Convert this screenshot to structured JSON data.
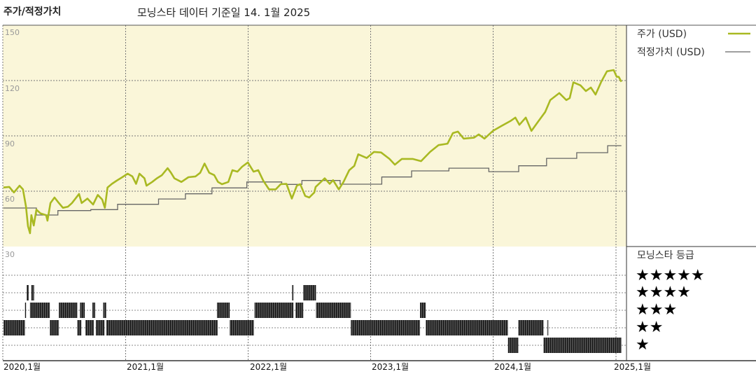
{
  "header": {
    "title": "주가/적정가치",
    "subtitle": "모닝스타 데이터 기준일 14. 1월 2025"
  },
  "colors": {
    "price_line": "#a9b922",
    "fair_value_line": "#666666",
    "plot_background": "#faf6d9",
    "rating_bar": "#333333"
  },
  "chart_data": {
    "type": "line",
    "title": "주가/적정가치",
    "subtitle": "모닝스타 데이터 기준일 14. 1월 2025",
    "xlim": [
      "2020-01-01",
      "2025-01-15"
    ],
    "ylim": [
      30,
      150
    ],
    "grid": true,
    "legend_placement": "right",
    "y_ticks": [
      "150",
      "120",
      "90",
      "60",
      "30"
    ],
    "x_ticks": [
      "2020,1월",
      "2021,1월",
      "2022,1월",
      "2023,1월",
      "2024,1월",
      "2025,1월"
    ],
    "series": [
      {
        "name": "주가 (USD)",
        "style": "line",
        "points": [
          [
            "2020-01-01",
            62
          ],
          [
            "2020-01-18",
            62.3
          ],
          [
            "2020-02-01",
            59.3
          ],
          [
            "2020-02-18",
            63
          ],
          [
            "2020-02-28",
            61
          ],
          [
            "2020-03-08",
            51.7
          ],
          [
            "2020-03-14",
            41
          ],
          [
            "2020-03-20",
            37.2
          ],
          [
            "2020-03-24",
            47
          ],
          [
            "2020-03-31",
            41.4
          ],
          [
            "2020-04-08",
            50
          ],
          [
            "2020-04-20",
            48
          ],
          [
            "2020-05-07",
            47
          ],
          [
            "2020-05-11",
            44
          ],
          [
            "2020-05-20",
            53.6
          ],
          [
            "2020-06-01",
            56.6
          ],
          [
            "2020-06-14",
            53.6
          ],
          [
            "2020-06-26",
            51
          ],
          [
            "2020-07-11",
            51.6
          ],
          [
            "2020-07-23",
            53.6
          ],
          [
            "2020-08-13",
            58.5
          ],
          [
            "2020-08-21",
            53.6
          ],
          [
            "2020-09-07",
            56
          ],
          [
            "2020-09-24",
            52.8
          ],
          [
            "2020-10-08",
            58
          ],
          [
            "2020-10-21",
            55.5
          ],
          [
            "2020-10-29",
            51
          ],
          [
            "2020-11-06",
            62
          ],
          [
            "2020-11-19",
            64
          ],
          [
            "2020-12-03",
            65.7
          ],
          [
            "2020-12-20",
            67.6
          ],
          [
            "2021-01-05",
            69.5
          ],
          [
            "2021-01-19",
            68
          ],
          [
            "2021-01-30",
            64
          ],
          [
            "2021-02-09",
            69.5
          ],
          [
            "2021-02-24",
            67
          ],
          [
            "2021-03-02",
            63
          ],
          [
            "2021-03-19",
            65
          ],
          [
            "2021-04-02",
            67
          ],
          [
            "2021-04-17",
            68.7
          ],
          [
            "2021-05-04",
            72.5
          ],
          [
            "2021-05-14",
            70
          ],
          [
            "2021-05-24",
            67
          ],
          [
            "2021-06-14",
            65
          ],
          [
            "2021-07-05",
            67.6
          ],
          [
            "2021-07-26",
            68
          ],
          [
            "2021-08-09",
            70
          ],
          [
            "2021-08-22",
            75
          ],
          [
            "2021-09-05",
            70
          ],
          [
            "2021-09-20",
            68.7
          ],
          [
            "2021-10-01",
            65
          ],
          [
            "2021-10-13",
            63.8
          ],
          [
            "2021-11-01",
            65
          ],
          [
            "2021-11-13",
            71.4
          ],
          [
            "2021-11-28",
            70.6
          ],
          [
            "2021-12-12",
            73.3
          ],
          [
            "2021-12-29",
            75.6
          ],
          [
            "2022-01-15",
            70.6
          ],
          [
            "2022-01-29",
            71.4
          ],
          [
            "2022-02-13",
            65.7
          ],
          [
            "2022-03-02",
            61
          ],
          [
            "2022-03-22",
            61
          ],
          [
            "2022-04-06",
            63.8
          ],
          [
            "2022-04-23",
            64
          ],
          [
            "2022-05-09",
            56
          ],
          [
            "2022-05-24",
            63
          ],
          [
            "2022-06-03",
            63.8
          ],
          [
            "2022-06-18",
            57.4
          ],
          [
            "2022-06-30",
            56.6
          ],
          [
            "2022-07-15",
            59.3
          ],
          [
            "2022-07-19",
            62.3
          ],
          [
            "2022-08-15",
            67
          ],
          [
            "2022-08-30",
            64
          ],
          [
            "2022-09-09",
            66
          ],
          [
            "2022-09-26",
            61
          ],
          [
            "2022-10-10",
            65
          ],
          [
            "2022-10-27",
            71.4
          ],
          [
            "2022-11-11",
            73.7
          ],
          [
            "2022-11-23",
            80
          ],
          [
            "2022-12-18",
            78
          ],
          [
            "2023-01-09",
            81.3
          ],
          [
            "2023-01-30",
            81
          ],
          [
            "2023-02-24",
            77.5
          ],
          [
            "2023-03-12",
            74.4
          ],
          [
            "2023-04-02",
            77.5
          ],
          [
            "2023-05-04",
            77.5
          ],
          [
            "2023-05-29",
            76.3
          ],
          [
            "2023-06-25",
            81.3
          ],
          [
            "2023-07-20",
            85
          ],
          [
            "2023-08-16",
            85.8
          ],
          [
            "2023-09-01",
            91.5
          ],
          [
            "2023-09-16",
            92.3
          ],
          [
            "2023-10-03",
            88.5
          ],
          [
            "2023-11-03",
            89
          ],
          [
            "2023-11-17",
            90.8
          ],
          [
            "2023-12-04",
            88.5
          ],
          [
            "2023-12-29",
            92.7
          ],
          [
            "2024-01-23",
            95.3
          ],
          [
            "2024-02-19",
            98
          ],
          [
            "2024-03-05",
            99.9
          ],
          [
            "2024-03-17",
            96
          ],
          [
            "2024-04-05",
            99.9
          ],
          [
            "2024-04-22",
            92.7
          ],
          [
            "2024-05-13",
            98
          ],
          [
            "2024-06-02",
            103
          ],
          [
            "2024-06-17",
            109.4
          ],
          [
            "2024-07-14",
            113.2
          ],
          [
            "2024-08-04",
            109.4
          ],
          [
            "2024-08-14",
            110.5
          ],
          [
            "2024-08-25",
            119
          ],
          [
            "2024-09-15",
            117.4
          ],
          [
            "2024-10-01",
            114.3
          ],
          [
            "2024-10-16",
            116.2
          ],
          [
            "2024-10-30",
            112.4
          ],
          [
            "2024-11-16",
            119.3
          ],
          [
            "2024-12-03",
            125
          ],
          [
            "2024-12-23",
            125.7
          ],
          [
            "2025-01-01",
            122
          ],
          [
            "2025-01-07",
            122
          ],
          [
            "2025-01-15",
            119.3
          ]
        ]
      },
      {
        "name": "적정가치 (USD)",
        "style": "step",
        "points": [
          [
            "2020-01-01",
            50.9
          ],
          [
            "2020-04-08",
            47.1
          ],
          [
            "2020-06-11",
            49.5
          ],
          [
            "2020-09-17",
            50
          ],
          [
            "2020-12-06",
            52.9
          ],
          [
            "2021-04-07",
            55.8
          ],
          [
            "2021-06-26",
            58.6
          ],
          [
            "2021-09-13",
            61.8
          ],
          [
            "2021-12-26",
            65
          ],
          [
            "2022-04-09",
            63.7
          ],
          [
            "2022-06-08",
            65.8
          ],
          [
            "2022-09-30",
            63.8
          ],
          [
            "2023-02-01",
            67.7
          ],
          [
            "2023-05-01",
            71
          ],
          [
            "2023-08-20",
            72.5
          ],
          [
            "2023-12-17",
            70.6
          ],
          [
            "2024-03-15",
            73.8
          ],
          [
            "2024-06-06",
            77.8
          ],
          [
            "2024-09-04",
            80.9
          ],
          [
            "2024-12-05",
            84.7
          ],
          [
            "2025-01-15",
            84.7
          ]
        ]
      }
    ],
    "rating": {
      "title": "모닝스타 등급",
      "levels": [
        "★★★★★",
        "★★★★",
        "★★★",
        "★★",
        "★"
      ],
      "periods": [
        {
          "stars": 4,
          "from": "2020-03-10",
          "to": "2020-03-16"
        },
        {
          "stars": 4,
          "from": "2020-03-24",
          "to": "2020-04-01"
        },
        {
          "stars": 4,
          "from": "2022-05-10",
          "to": "2022-05-14"
        },
        {
          "stars": 4,
          "from": "2022-06-12",
          "to": "2022-07-20"
        },
        {
          "stars": 3,
          "from": "2020-03-05",
          "to": "2020-03-08"
        },
        {
          "stars": 3,
          "from": "2020-03-20",
          "to": "2020-05-18"
        },
        {
          "stars": 3,
          "from": "2020-06-14",
          "to": "2020-08-08"
        },
        {
          "stars": 3,
          "from": "2020-08-16",
          "to": "2020-08-30"
        },
        {
          "stars": 3,
          "from": "2020-09-22",
          "to": "2020-09-30"
        },
        {
          "stars": 3,
          "from": "2020-10-24",
          "to": "2020-11-02"
        },
        {
          "stars": 3,
          "from": "2021-09-28",
          "to": "2021-11-05"
        },
        {
          "stars": 3,
          "from": "2022-01-18",
          "to": "2022-05-14"
        },
        {
          "stars": 3,
          "from": "2022-05-20",
          "to": "2022-06-12"
        },
        {
          "stars": 3,
          "from": "2022-07-20",
          "to": "2022-11-01"
        },
        {
          "stars": 3,
          "from": "2023-05-26",
          "to": "2023-06-12"
        },
        {
          "stars": 2,
          "from": "2020-01-01",
          "to": "2020-03-05"
        },
        {
          "stars": 2,
          "from": "2020-05-18",
          "to": "2020-06-14"
        },
        {
          "stars": 2,
          "from": "2020-08-08",
          "to": "2020-08-20"
        },
        {
          "stars": 2,
          "from": "2020-09-01",
          "to": "2020-09-26"
        },
        {
          "stars": 2,
          "from": "2020-10-02",
          "to": "2020-10-28"
        },
        {
          "stars": 2,
          "from": "2020-11-02",
          "to": "2021-09-30"
        },
        {
          "stars": 2,
          "from": "2021-11-05",
          "to": "2022-01-16"
        },
        {
          "stars": 2,
          "from": "2022-11-01",
          "to": "2023-05-26"
        },
        {
          "stars": 2,
          "from": "2023-06-12",
          "to": "2024-02-12"
        },
        {
          "stars": 2,
          "from": "2024-03-14",
          "to": "2024-05-28"
        },
        {
          "stars": 2,
          "from": "2024-06-08",
          "to": "2024-06-10"
        },
        {
          "stars": 1,
          "from": "2024-02-12",
          "to": "2024-03-14"
        },
        {
          "stars": 1,
          "from": "2024-05-28",
          "to": "2025-01-15"
        }
      ]
    }
  }
}
